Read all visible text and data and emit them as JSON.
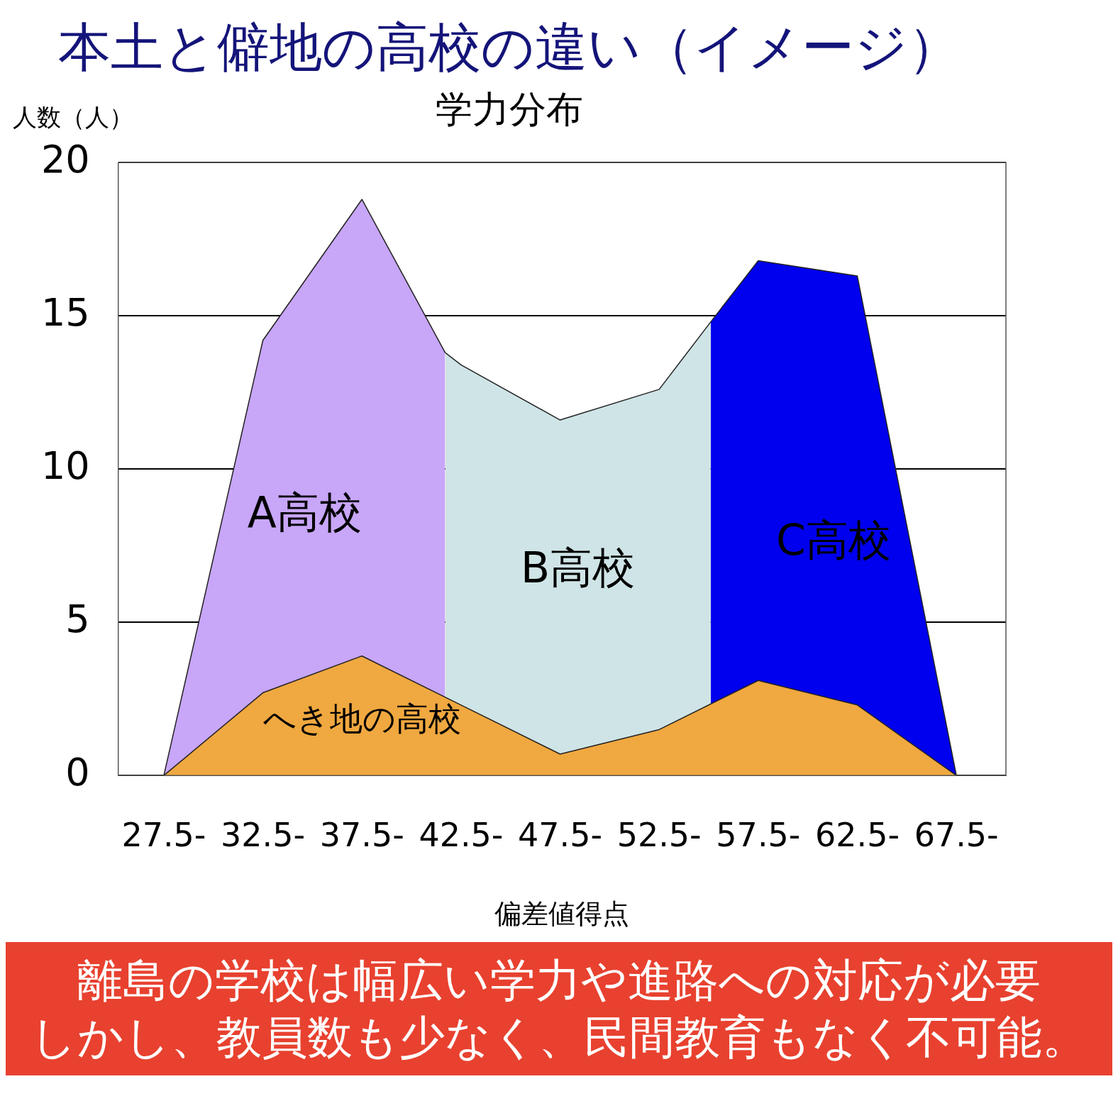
{
  "chart_data": {
    "type": "area",
    "title": "本土と僻地の高校の違い（イメージ）",
    "subtitle": "学力分布",
    "xlabel": "偏差値得点",
    "ylabel": "人数（人）",
    "xlim": [
      25.2,
      70
    ],
    "xticks": [
      {
        "value": 27.5,
        "label": "27.5-"
      },
      {
        "value": 32.5,
        "label": "32.5-"
      },
      {
        "value": 37.5,
        "label": "37.5-"
      },
      {
        "value": 42.5,
        "label": "42.5-"
      },
      {
        "value": 47.5,
        "label": "47.5-"
      },
      {
        "value": 52.5,
        "label": "52.5-"
      },
      {
        "value": 57.5,
        "label": "57.5-"
      },
      {
        "value": 62.5,
        "label": "62.5-"
      },
      {
        "value": 67.5,
        "label": "67.5-"
      }
    ],
    "ylim": [
      0,
      20
    ],
    "yticks": [
      0,
      5,
      10,
      15,
      20
    ],
    "grid": "y",
    "legend": false,
    "series": [
      {
        "name": "A高校",
        "color": "#c8a6f8",
        "x": [
          27.5,
          32.5,
          37.5,
          41.7
        ],
        "values": [
          0,
          14.2,
          18.8,
          13.8
        ]
      },
      {
        "name": "B高校",
        "color": "#cfe4e6",
        "x": [
          41.7,
          42.5,
          47.5,
          52.5,
          55.1
        ],
        "values": [
          13.8,
          13.4,
          11.6,
          12.6,
          14.8
        ]
      },
      {
        "name": "C高校",
        "color": "#0000ee",
        "x": [
          55.1,
          57.5,
          62.5,
          67.5
        ],
        "values": [
          14.8,
          16.8,
          16.3,
          0
        ]
      },
      {
        "name": "へき地の高校",
        "color": "#f0a840",
        "x": [
          27.5,
          32.5,
          37.5,
          42.5,
          47.5,
          52.5,
          57.5,
          62.5,
          67.5
        ],
        "values": [
          0,
          2.7,
          3.9,
          2.3,
          0.7,
          1.5,
          3.1,
          2.3,
          0
        ]
      }
    ],
    "annotations": [
      "離島の学校は幅広い学力や進路への対応が必要",
      "しかし、教員数も少なく、民間教育もなく不可能。"
    ]
  }
}
